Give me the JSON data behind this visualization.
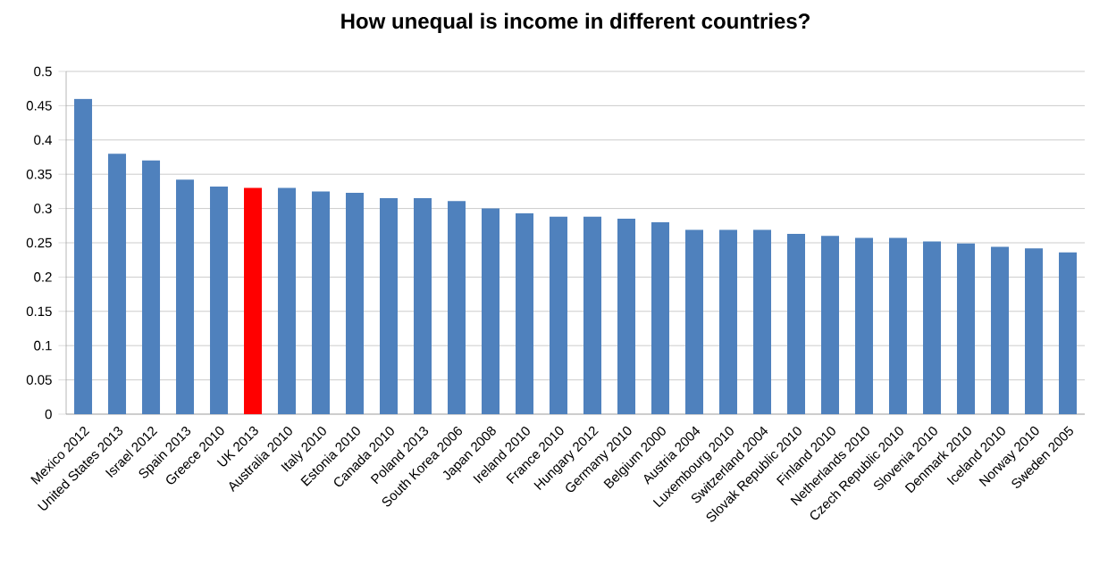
{
  "chart_data": {
    "type": "bar",
    "title": "How unequal is income in different countries?",
    "categories": [
      "Mexico 2012",
      "United States 2013",
      "Israel 2012",
      "Spain 2013",
      "Greece 2010",
      "UK 2013",
      "Australia 2010",
      "Italy 2010",
      "Estonia 2010",
      "Canada 2010",
      "Poland 2013",
      "South Korea 2006",
      "Japan 2008",
      "Ireland 2010",
      "France 2010",
      "Hungary 2012",
      "Germany 2010",
      "Belgium 2000",
      "Austria 2004",
      "Luxembourg 2010",
      "Switzerland 2004",
      "Slovak Republic 2010",
      "Finland 2010",
      "Netherlands 2010",
      "Czech Republic 2010",
      "Slovenia 2010",
      "Denmark 2010",
      "Iceland 2010",
      "Norway 2010",
      "Sweden 2005"
    ],
    "values": [
      0.46,
      0.38,
      0.37,
      0.342,
      0.332,
      0.33,
      0.33,
      0.325,
      0.323,
      0.315,
      0.315,
      0.311,
      0.3,
      0.293,
      0.288,
      0.288,
      0.285,
      0.28,
      0.269,
      0.269,
      0.269,
      0.263,
      0.26,
      0.257,
      0.257,
      0.252,
      0.249,
      0.244,
      0.242,
      0.236
    ],
    "colors": [
      "#4f81bd",
      "#4f81bd",
      "#4f81bd",
      "#4f81bd",
      "#4f81bd",
      "#ff0000",
      "#4f81bd",
      "#4f81bd",
      "#4f81bd",
      "#4f81bd",
      "#4f81bd",
      "#4f81bd",
      "#4f81bd",
      "#4f81bd",
      "#4f81bd",
      "#4f81bd",
      "#4f81bd",
      "#4f81bd",
      "#4f81bd",
      "#4f81bd",
      "#4f81bd",
      "#4f81bd",
      "#4f81bd",
      "#4f81bd",
      "#4f81bd",
      "#4f81bd",
      "#4f81bd",
      "#4f81bd",
      "#4f81bd",
      "#4f81bd"
    ],
    "ylim": [
      0,
      0.5
    ],
    "yticks": [
      0,
      0.05,
      0.1,
      0.15,
      0.2,
      0.25,
      0.3,
      0.35,
      0.4,
      0.45,
      0.5
    ],
    "grid": "y"
  }
}
